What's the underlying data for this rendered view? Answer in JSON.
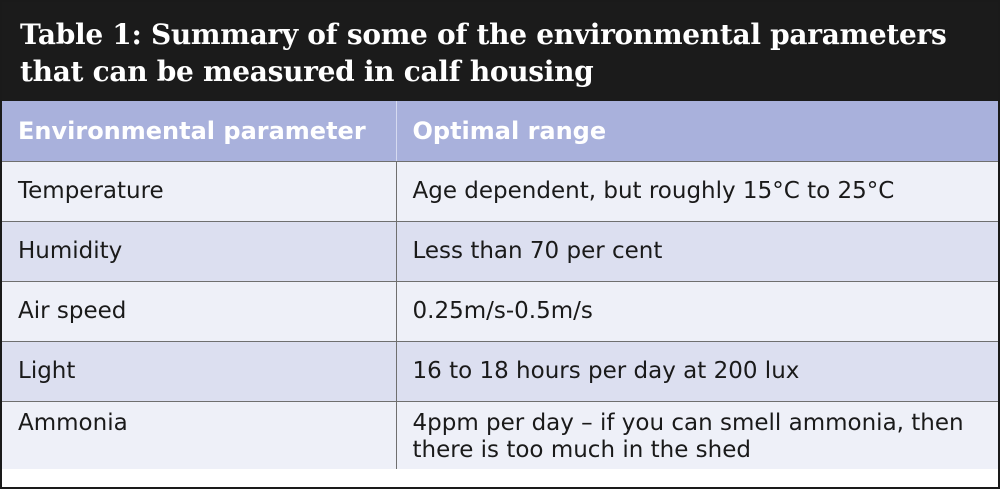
{
  "table": {
    "title": "Table 1: Summary of some of the environmental parameters that can be measured in calf housing",
    "columns": [
      "Environmental parameter",
      "Optimal range"
    ],
    "rows": [
      {
        "parameter": "Temperature",
        "range": "Age dependent, but roughly 15°C to 25°C"
      },
      {
        "parameter": "Humidity",
        "range": "Less than 70 per cent"
      },
      {
        "parameter": "Air speed",
        "range": "0.25m/s-0.5m/s"
      },
      {
        "parameter": "Light",
        "range": "16 to 18 hours per day at 200 lux"
      },
      {
        "parameter": "Ammonia",
        "range": "4ppm per day – if you can smell ammonia, then there is too much in the shed"
      }
    ]
  },
  "colors": {
    "title_background": "#1b1b1b",
    "header_background": "#a9b1dc",
    "row_light": "#eef0f8",
    "row_shade": "#dcdff0"
  }
}
